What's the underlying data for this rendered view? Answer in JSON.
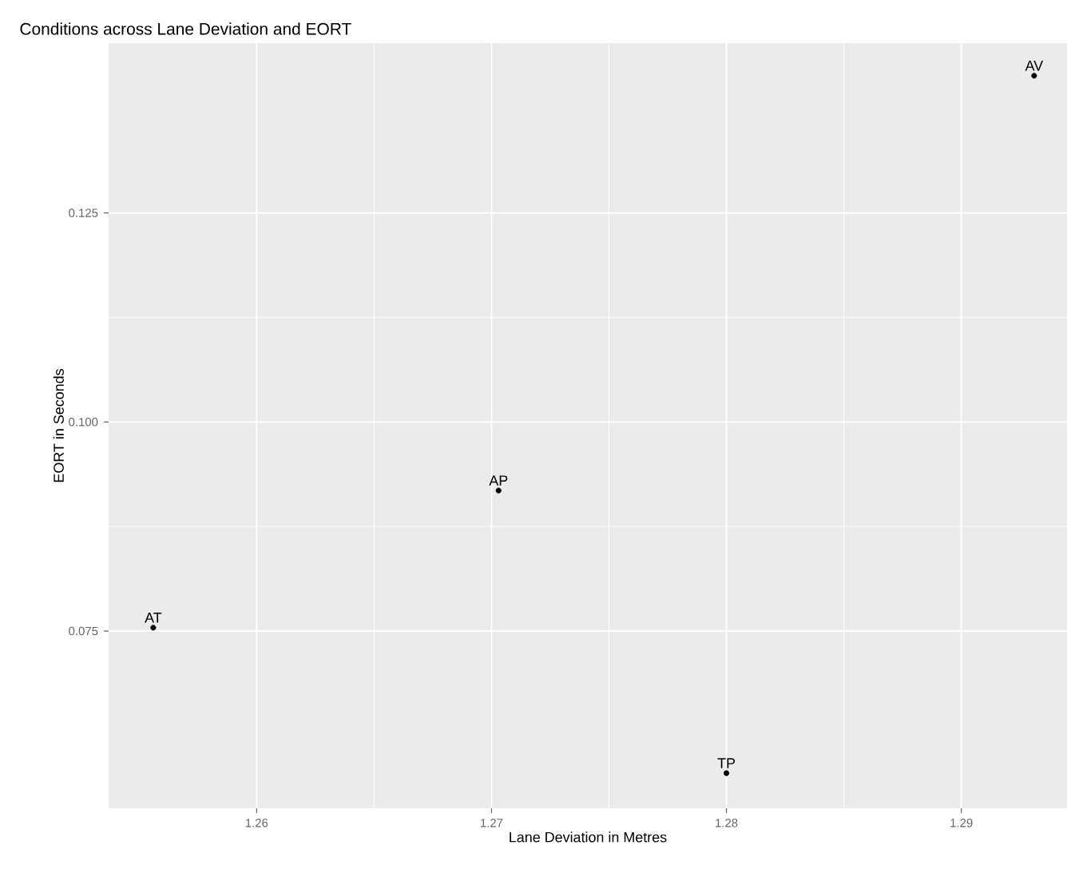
{
  "chart_data": {
    "type": "scatter",
    "title": "Conditions across Lane Deviation and EORT",
    "xlabel": "Lane Deviation in Metres",
    "ylabel": "EORT in Seconds",
    "series": [
      {
        "color": "#000000",
        "x": [
          1.2556,
          1.2703,
          1.28,
          1.2931
        ],
        "values": [
          0.0754,
          0.0918,
          0.058,
          0.1414
        ]
      }
    ],
    "annotations": [
      {
        "text": "AT",
        "x": 1.2556,
        "y": 0.0754
      },
      {
        "text": "AP",
        "x": 1.2703,
        "y": 0.0918
      },
      {
        "text": "TP",
        "x": 1.28,
        "y": 0.058
      },
      {
        "text": "AV",
        "x": 1.2931,
        "y": 0.1414
      }
    ],
    "xlim": [
      1.2537,
      1.2945
    ],
    "ylim": [
      0.0538,
      0.1453
    ],
    "xticks": [
      1.26,
      1.27,
      1.28,
      1.29
    ],
    "yticks": [
      {
        "value": 0.075,
        "label": "0.075"
      },
      {
        "value": 0.1,
        "label": "0.100"
      },
      {
        "value": 0.125,
        "label": "0.125"
      }
    ],
    "grid": true,
    "marker": "circle"
  }
}
